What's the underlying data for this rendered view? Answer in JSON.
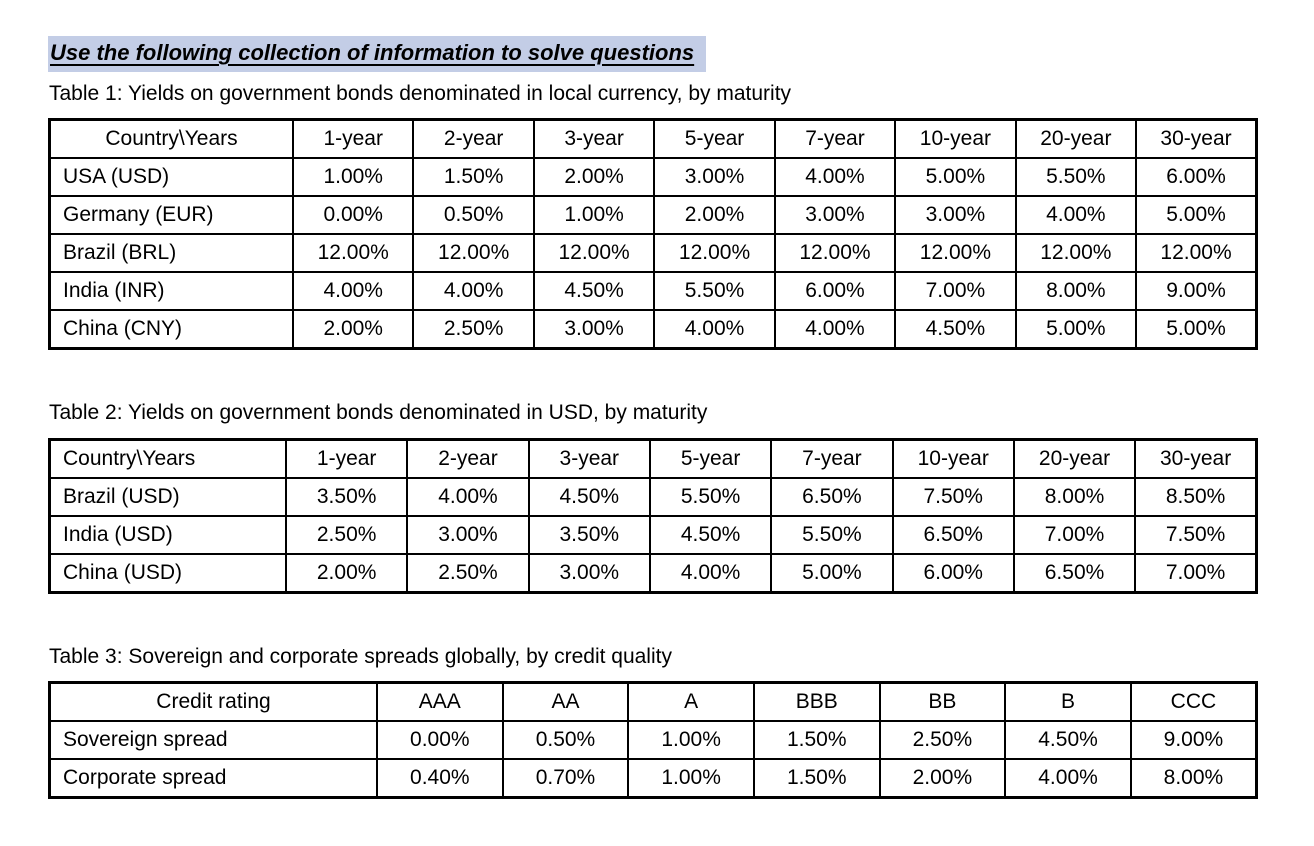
{
  "heading": "Use the following collection of information to solve questions",
  "colors": {
    "heading_highlight": "#c3cde6",
    "table_border": "#000000",
    "text": "#000000"
  },
  "tables": [
    {
      "title": "Table 1: Yields on government bonds denominated in local currency, by maturity",
      "columns": [
        "Country\\Years",
        "1-year",
        "2-year",
        "3-year",
        "5-year",
        "7-year",
        "10-year",
        "20-year",
        "30-year"
      ],
      "rows": [
        {
          "label": "USA (USD)",
          "values": [
            "1.00%",
            "1.50%",
            "2.00%",
            "3.00%",
            "4.00%",
            "5.00%",
            "5.50%",
            "6.00%"
          ]
        },
        {
          "label": "Germany (EUR)",
          "values": [
            "0.00%",
            "0.50%",
            "1.00%",
            "2.00%",
            "3.00%",
            "3.00%",
            "4.00%",
            "5.00%"
          ]
        },
        {
          "label": "Brazil (BRL)",
          "values": [
            "12.00%",
            "12.00%",
            "12.00%",
            "12.00%",
            "12.00%",
            "12.00%",
            "12.00%",
            "12.00%"
          ]
        },
        {
          "label": "India (INR)",
          "values": [
            "4.00%",
            "4.00%",
            "4.50%",
            "5.50%",
            "6.00%",
            "7.00%",
            "8.00%",
            "9.00%"
          ]
        },
        {
          "label": "China (CNY)",
          "values": [
            "2.00%",
            "2.50%",
            "3.00%",
            "4.00%",
            "4.00%",
            "4.50%",
            "5.00%",
            "5.00%"
          ]
        }
      ]
    },
    {
      "title": "Table 2: Yields on government bonds denominated in USD, by maturity",
      "columns": [
        "Country\\Years",
        "1-year",
        "2-year",
        "3-year",
        "5-year",
        "7-year",
        "10-year",
        "20-year",
        "30-year"
      ],
      "rows": [
        {
          "label": "Brazil (USD)",
          "values": [
            "3.50%",
            "4.00%",
            "4.50%",
            "5.50%",
            "6.50%",
            "7.50%",
            "8.00%",
            "8.50%"
          ]
        },
        {
          "label": "India (USD)",
          "values": [
            "2.50%",
            "3.00%",
            "3.50%",
            "4.50%",
            "5.50%",
            "6.50%",
            "7.00%",
            "7.50%"
          ]
        },
        {
          "label": "China (USD)",
          "values": [
            "2.00%",
            "2.50%",
            "3.00%",
            "4.00%",
            "5.00%",
            "6.00%",
            "6.50%",
            "7.00%"
          ]
        }
      ]
    },
    {
      "title": "Table 3: Sovereign and corporate spreads globally, by credit quality",
      "columns": [
        "Credit rating",
        "AAA",
        "AA",
        "A",
        "BBB",
        "BB",
        "B",
        "CCC"
      ],
      "rows": [
        {
          "label": "Sovereign spread",
          "values": [
            "0.00%",
            "0.50%",
            "1.00%",
            "1.50%",
            "2.50%",
            "4.50%",
            "9.00%"
          ]
        },
        {
          "label": "Corporate spread",
          "values": [
            "0.40%",
            "0.70%",
            "1.00%",
            "1.50%",
            "2.00%",
            "4.00%",
            "8.00%"
          ]
        }
      ]
    }
  ]
}
